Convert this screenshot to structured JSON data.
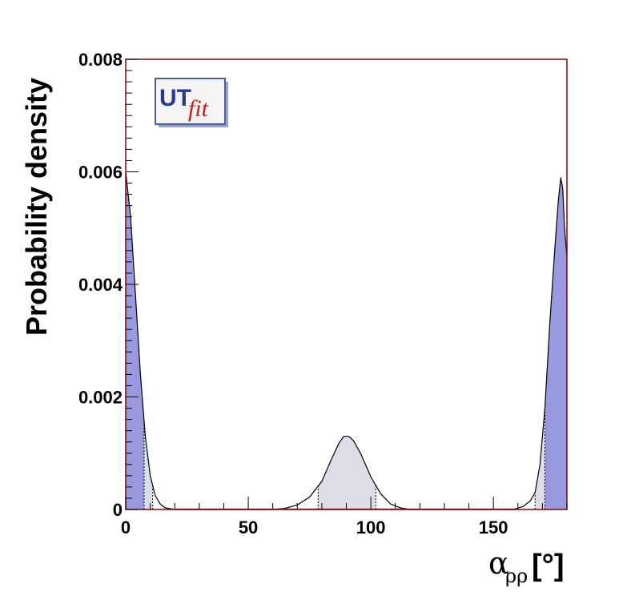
{
  "chart_data": {
    "type": "area",
    "title": "",
    "xlabel_main": "α",
    "xlabel_sub": "ρρ",
    "xlabel_unit": "[°]",
    "ylabel": "Probability density",
    "xlim": [
      0,
      180
    ],
    "ylim": [
      0,
      0.008
    ],
    "x_ticks": [
      0,
      50,
      100,
      150
    ],
    "x_tick_labels": [
      "0",
      "50",
      "100",
      "150"
    ],
    "y_ticks": [
      0,
      0.002,
      0.004,
      0.006,
      0.008
    ],
    "y_tick_labels": [
      "0",
      "0.002",
      "0.004",
      "0.006",
      "0.008"
    ],
    "series": [
      {
        "values": [
          [
            0,
            0.006
          ],
          [
            2,
            0.0052
          ],
          [
            4,
            0.0038
          ],
          [
            6,
            0.0024
          ],
          [
            8,
            0.0013
          ],
          [
            10,
            0.0006
          ],
          [
            12,
            0.00025
          ],
          [
            14,
            0.0001
          ],
          [
            16,
            3e-05
          ],
          [
            20,
            0.0
          ],
          [
            60,
            0.0
          ],
          [
            65,
            2e-05
          ],
          [
            70,
            8e-05
          ],
          [
            75,
            0.00022
          ],
          [
            80,
            0.0005
          ],
          [
            84,
            0.0009
          ],
          [
            87,
            0.00118
          ],
          [
            89,
            0.0013
          ],
          [
            91,
            0.0013
          ],
          [
            93,
            0.00122
          ],
          [
            96,
            0.00098
          ],
          [
            100,
            0.00058
          ],
          [
            104,
            0.00028
          ],
          [
            108,
            0.0001
          ],
          [
            112,
            3e-05
          ],
          [
            116,
            0.0
          ],
          [
            158,
            0.0
          ],
          [
            162,
            5e-05
          ],
          [
            165,
            0.00015
          ],
          [
            167,
            0.0003
          ],
          [
            169,
            0.0008
          ],
          [
            171,
            0.0018
          ],
          [
            173,
            0.0033
          ],
          [
            175,
            0.0046
          ],
          [
            176.5,
            0.0055
          ],
          [
            177.5,
            0.0059
          ],
          [
            178.3,
            0.0057
          ],
          [
            179,
            0.005
          ],
          [
            180,
            0.0045
          ]
        ]
      }
    ],
    "bands": {
      "dark_ranges": [
        [
          0,
          7.5
        ],
        [
          171,
          180
        ]
      ],
      "light_ranges": [
        [
          7.5,
          11
        ],
        [
          78.5,
          102
        ],
        [
          167,
          171
        ]
      ],
      "dark_color": "#9999e0",
      "light_color": "#dcdde6"
    },
    "line_color": "#000000",
    "frame_color": "#8b0000",
    "grid": false,
    "legend": "none",
    "logo": {
      "text_ut": "UT",
      "text_fit": "fit",
      "placement": "top-left"
    }
  }
}
